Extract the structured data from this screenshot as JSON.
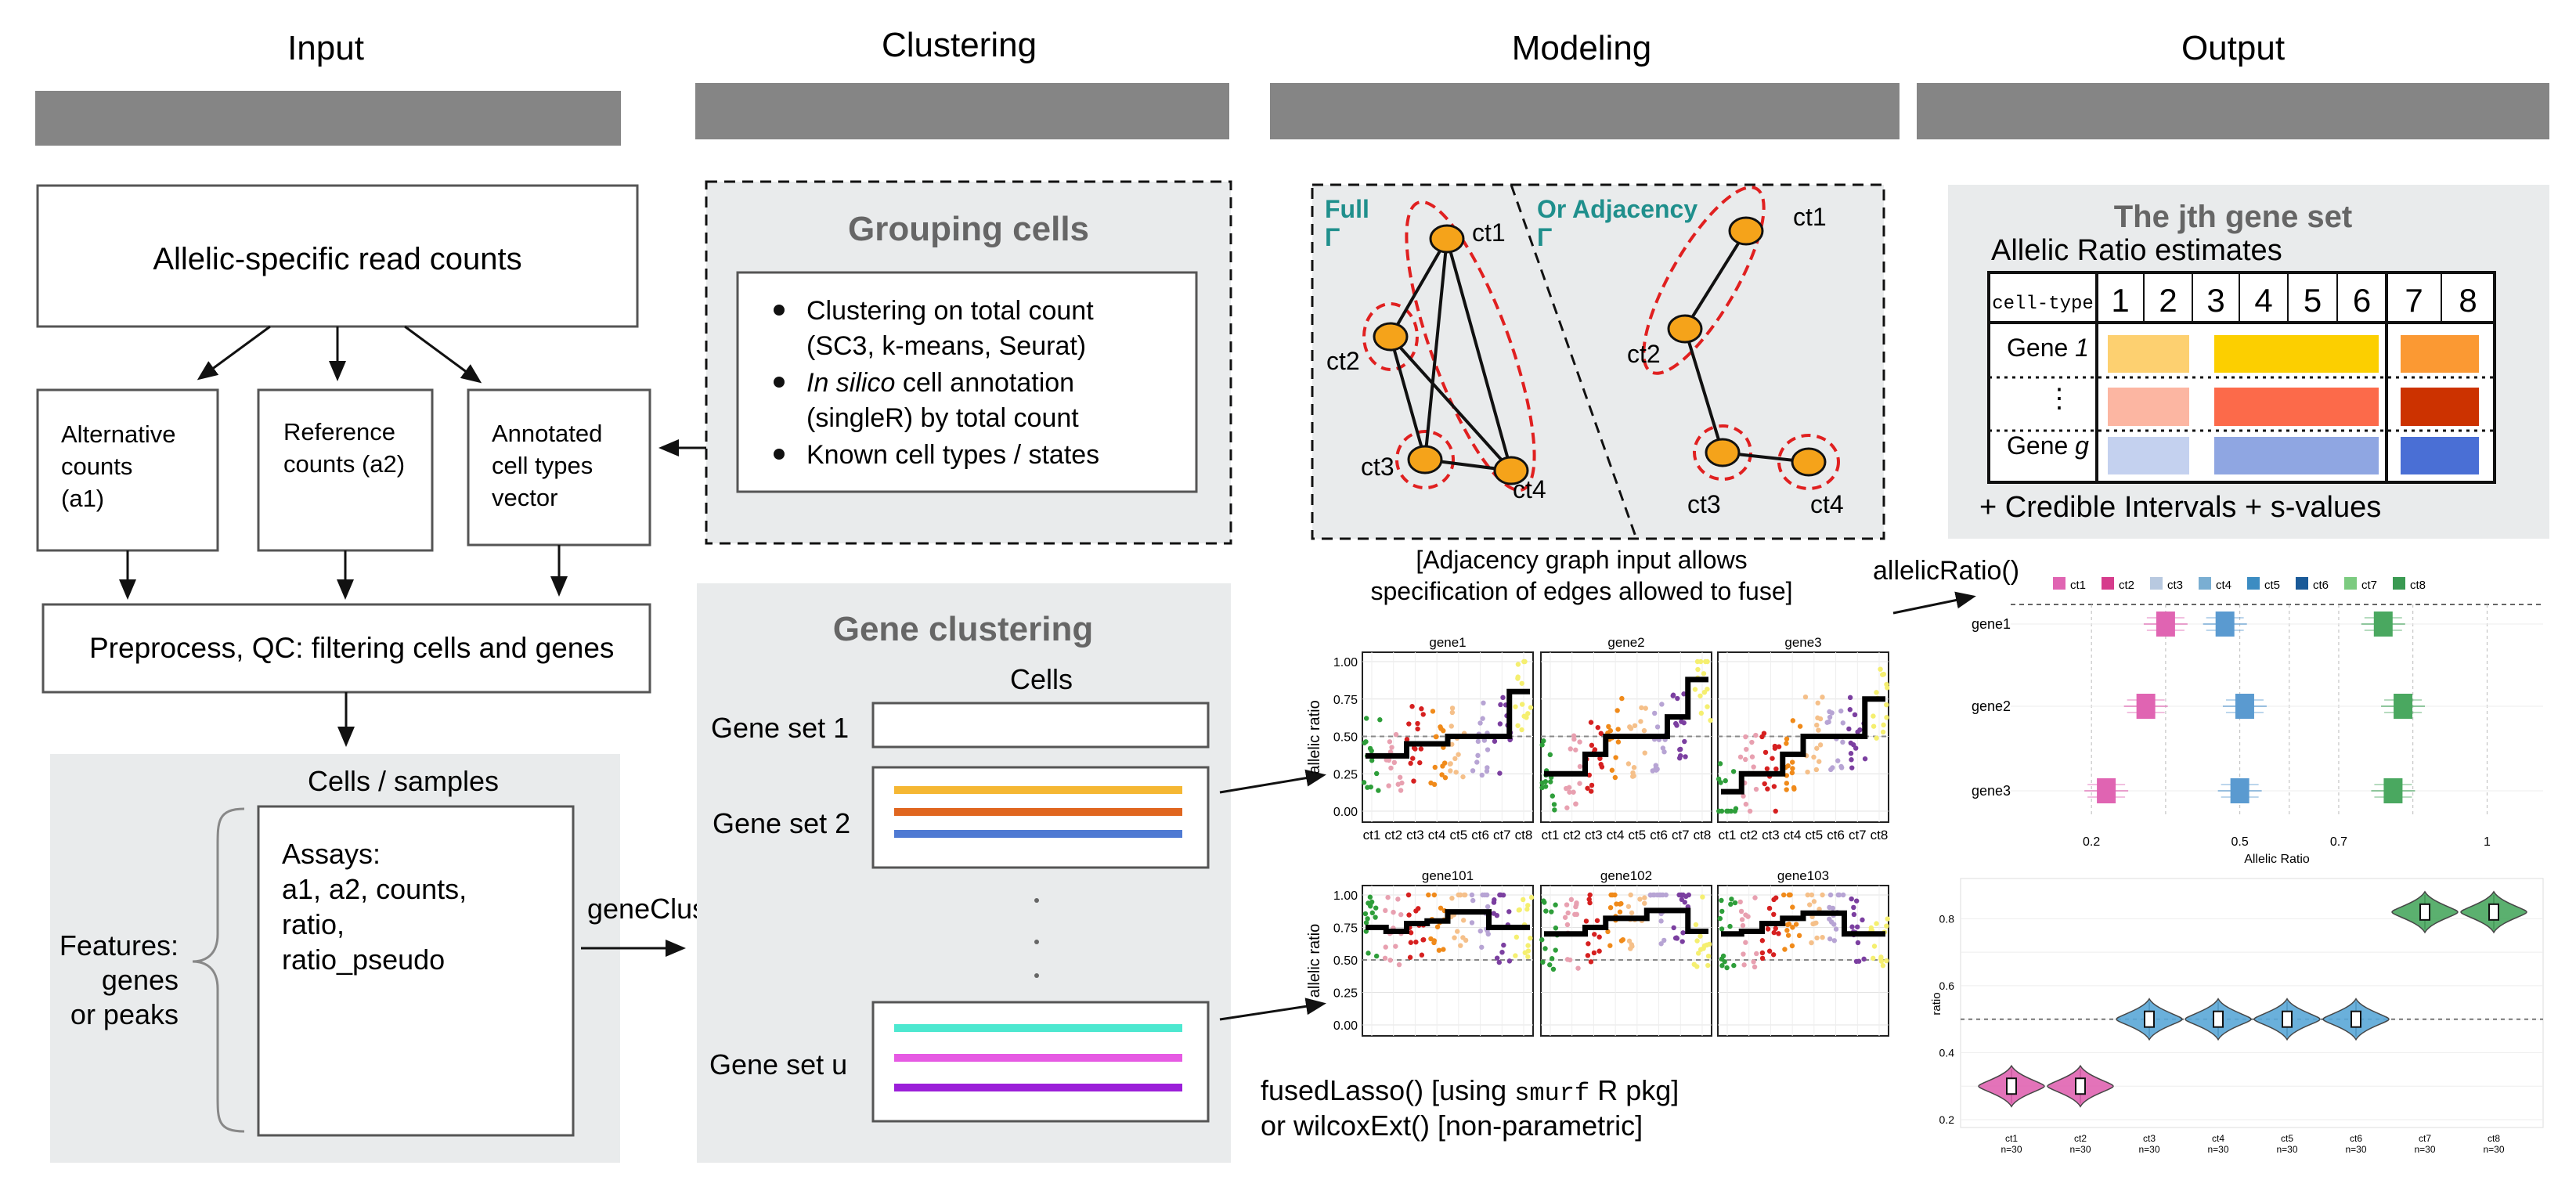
{
  "columns": {
    "input": "Input",
    "clustering": "Clustering",
    "modeling": "Modeling",
    "output": "Output"
  },
  "input": {
    "allelic": "Allelic-specific read counts",
    "alt": [
      "Alternative",
      "counts",
      "(a1)"
    ],
    "ref": [
      "Reference",
      "counts (a2)"
    ],
    "annot": [
      "Annotated",
      "cell types",
      "vector"
    ],
    "preprocess": "Preprocess, QC: filtering cells and genes",
    "cells_samples": "Cells / samples",
    "features": [
      "Features:",
      "genes",
      "or peaks"
    ],
    "assays": [
      "Assays:",
      "a1, a2, counts,",
      "ratio,",
      "ratio_pseudo"
    ],
    "gene_cluster_fn": "geneCluster()"
  },
  "grouping": {
    "title": "Grouping cells",
    "bullets": [
      {
        "lines": [
          "Clustering on total count",
          "(SC3, k-means, Seurat)"
        ]
      },
      {
        "italic": "In silico",
        "lines": [
          " cell annotation",
          "(singleR) by total count"
        ]
      },
      {
        "lines": [
          "Known cell types / states"
        ]
      }
    ]
  },
  "gene_clustering": {
    "title": "Gene clustering",
    "cells": "Cells",
    "sets": [
      "Gene set 1",
      "Gene set 2",
      "Gene set u"
    ],
    "line_colors_2": [
      "#f5b733",
      "#e0661f",
      "#4f7ad3"
    ],
    "line_colors_u": [
      "#4de8d0",
      "#e65ae3",
      "#9b1fd9"
    ]
  },
  "graph": {
    "full": [
      "Full",
      "Γ"
    ],
    "adj": [
      "Or Adjacency",
      "Γ"
    ],
    "nodes": [
      "ct1",
      "ct2",
      "ct3",
      "ct4"
    ],
    "caption": [
      "[Adjacency graph input allows",
      "specification of edges allowed to fuse]"
    ],
    "node_color": "#f5a31a",
    "title_color": "#1f8f8c"
  },
  "panels": {
    "ylabel": "allelic ratio",
    "yticks": [
      "1.00",
      "0.75",
      "0.50",
      "0.25",
      "0.00"
    ],
    "xticks": [
      "ct1",
      "ct2",
      "ct3",
      "ct4",
      "ct5",
      "ct6",
      "ct7",
      "ct8"
    ],
    "top": [
      "gene1",
      "gene2",
      "gene3"
    ],
    "bottom": [
      "gene101",
      "gene102",
      "gene103"
    ],
    "steps_top": [
      [
        0.37,
        0.37,
        0.45,
        0.45,
        0.5,
        0.5,
        0.5,
        0.8
      ],
      [
        0.25,
        0.25,
        0.38,
        0.5,
        0.5,
        0.5,
        0.63,
        0.88
      ],
      [
        0.13,
        0.25,
        0.25,
        0.38,
        0.5,
        0.5,
        0.5,
        0.75
      ]
    ],
    "steps_bottom": [
      [
        0.75,
        0.72,
        0.78,
        0.8,
        0.87,
        0.87,
        0.75,
        0.75
      ],
      [
        0.7,
        0.7,
        0.75,
        0.82,
        0.82,
        0.88,
        0.88,
        0.72
      ],
      [
        0.7,
        0.72,
        0.78,
        0.82,
        0.86,
        0.86,
        0.7,
        0.7
      ]
    ],
    "ct_colors": [
      "#2e9e3a",
      "#e8a0b0",
      "#d62020",
      "#f08a1a",
      "#f5c08a",
      "#b7a4d4",
      "#7b3fa0",
      "#f5ef70"
    ]
  },
  "modeling_text": {
    "l1a": "fusedLasso() [using ",
    "l1b": "smurf",
    "l1c": " R pkg]",
    "l2": "or  wilcoxExt() [non-parametric]"
  },
  "output": {
    "box_title": "The jth gene set",
    "estimates": "Allelic Ratio estimates",
    "cell_type": "cell-type",
    "cols": [
      "1",
      "2",
      "3",
      "4",
      "5",
      "6",
      "7",
      "8"
    ],
    "gene1": "Gene 1",
    "dots": "⋮",
    "geneg": "Gene g",
    "credible": "+ Credible Intervals + s-values",
    "row_colors": [
      "#fdd070",
      "#fccf00",
      "#fb9933",
      "#fcb6a2",
      "#fc6a4a",
      "#cc3200",
      "#c4d1ef",
      "#8fa6e2",
      "#4a6fd5"
    ],
    "allelic_ratio_fn": "allelicRatio()"
  },
  "forest": {
    "legend": [
      "ct1",
      "ct2",
      "ct3",
      "ct4",
      "ct5",
      "ct6",
      "ct7",
      "ct8"
    ],
    "legend_colors": [
      "#e064b2",
      "#d63c8c",
      "#b8c9e0",
      "#7aaed2",
      "#3c8cc2",
      "#1a5a98",
      "#7ccb80",
      "#3a9a52"
    ],
    "genes": [
      "gene1",
      "gene2",
      "gene3"
    ],
    "xticks": [
      "0.2",
      "0.5",
      "0.7",
      "1"
    ],
    "xlabel": "Allelic Ratio",
    "points": [
      [
        {
          "x": 0.35,
          "c": "#e064b2"
        },
        {
          "x": 0.47,
          "c": "#5a9ad0"
        },
        {
          "x": 0.79,
          "c": "#4aa860"
        }
      ],
      [
        {
          "x": 0.31,
          "c": "#e064b2"
        },
        {
          "x": 0.51,
          "c": "#5a9ad0"
        },
        {
          "x": 0.83,
          "c": "#4aa860"
        }
      ],
      [
        {
          "x": 0.23,
          "c": "#e064b2"
        },
        {
          "x": 0.5,
          "c": "#5a9ad0"
        },
        {
          "x": 0.81,
          "c": "#4aa860"
        }
      ]
    ]
  },
  "violin": {
    "ylabel": "ratio",
    "yticks": [
      "0.8",
      "0.6",
      "0.4",
      "0.2"
    ],
    "cats": [
      "ct1",
      "ct2",
      "ct3",
      "ct4",
      "ct5",
      "ct6",
      "ct7",
      "ct8"
    ],
    "n": "n=30",
    "values": [
      0.3,
      0.3,
      0.5,
      0.5,
      0.5,
      0.5,
      0.82,
      0.82
    ],
    "colors": [
      "#e064b2",
      "#e064b2",
      "#5aa8d8",
      "#5aa8d8",
      "#5aa8d8",
      "#5aa8d8",
      "#4aa860",
      "#4aa860"
    ]
  }
}
